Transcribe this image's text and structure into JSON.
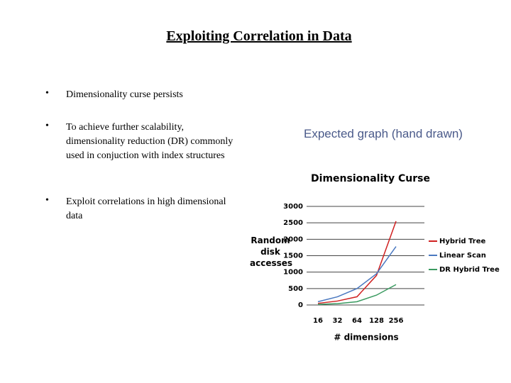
{
  "title": "Exploiting Correlation in Data",
  "bullets": [
    "Dimensionality curse persists",
    "To achieve further scalability, dimensionality reduction (DR) commonly used in conjuction with index structures",
    "Exploit correlations in high dimensional data"
  ],
  "caption": "Expected graph (hand drawn)",
  "chart_data": {
    "type": "line",
    "title": "Dimensionality Curse",
    "x_label": "# dimensions",
    "y_label": "Random disk accesses",
    "categories": [
      "16",
      "32",
      "64",
      "128",
      "256"
    ],
    "series": [
      {
        "name": "Hybrid Tree",
        "color": "#d02020",
        "values": [
          50,
          120,
          250,
          900,
          2550
        ]
      },
      {
        "name": "Linear Scan",
        "color": "#4a78c0",
        "values": [
          100,
          250,
          500,
          950,
          1780
        ]
      },
      {
        "name": "DR Hybrid Tree",
        "color": "#3a9a60",
        "values": [
          20,
          40,
          100,
          300,
          620
        ]
      }
    ],
    "ylim": [
      0,
      3000
    ],
    "yticks": [
      0,
      500,
      1000,
      1500,
      2000,
      2500,
      3000
    ],
    "grid": true
  }
}
